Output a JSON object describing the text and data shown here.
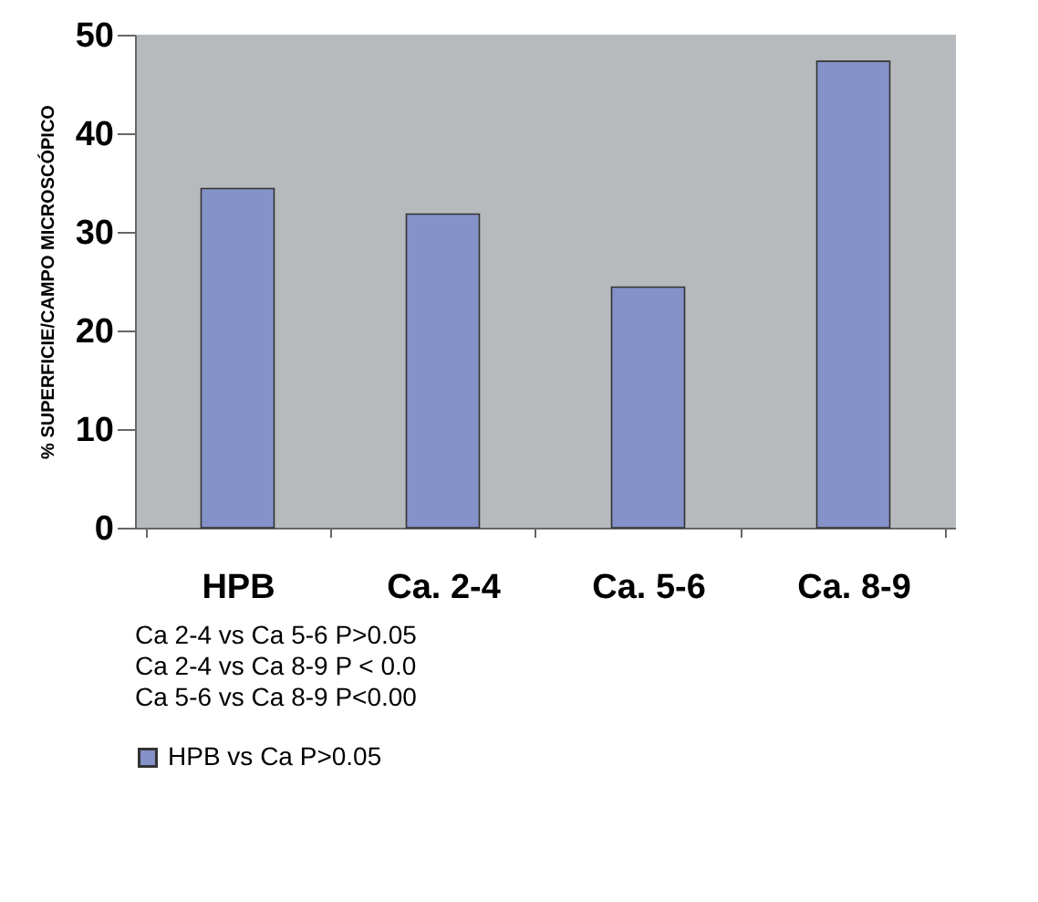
{
  "chart_data": {
    "type": "bar",
    "ylabel": "% SUPERFICIE/CAMPO MICROSCÓPICO",
    "categories": [
      "HPB",
      "Ca. 2-4",
      "Ca. 5-6",
      "Ca. 8-9"
    ],
    "series": [
      {
        "name": "HPB vs Ca   P>0.05",
        "color": "#8591c9",
        "values": [
          34.4,
          31.8,
          24.4,
          47.3
        ]
      }
    ],
    "ylim": [
      0,
      50
    ],
    "yticks": [
      0,
      10,
      20,
      30,
      40,
      50
    ],
    "grid": false,
    "legend": "bottom",
    "annotations": [
      "Ca 2-4 vs Ca 5-6  P>0.05",
      "Ca 2-4 vs Ca 8-9 P < 0.0",
      "Ca 5-6 vs Ca 8-9  P<0.00"
    ]
  }
}
